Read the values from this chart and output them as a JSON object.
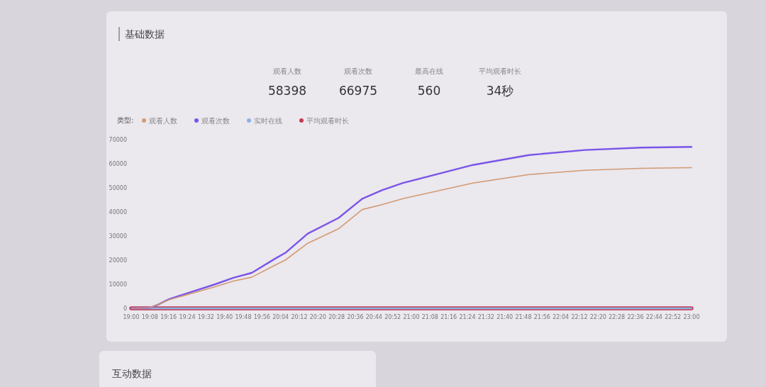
{
  "chart_data": [
    {
      "type": "other",
      "title": "基础数据",
      "annotations": [
        "观看人数",
        "58398",
        "观看次数",
        "66975",
        "最高在线",
        "560",
        "平均观看时长",
        "34秒"
      ]
    },
    {
      "type": "line",
      "legend_title": "类型:",
      "legend": "top left",
      "grid": false,
      "marker": "none",
      "line_style": "solid",
      "xlim": [
        19,
        23
      ],
      "ylim": [
        0,
        70000
      ],
      "yticks": [
        0,
        10000,
        20000,
        30000,
        40000,
        50000,
        60000,
        70000
      ],
      "xticks": [
        {
          "value": 19,
          "label": "19:00"
        },
        {
          "value": 19.1333,
          "label": "19:08"
        },
        {
          "value": 19.2667,
          "label": "19:16"
        },
        {
          "value": 19.4,
          "label": "19:24"
        },
        {
          "value": 19.5333,
          "label": "19:32"
        },
        {
          "value": 19.6667,
          "label": "19:40"
        },
        {
          "value": 19.8,
          "label": "19:48"
        },
        {
          "value": 19.9333,
          "label": "19:56"
        },
        {
          "value": 20.0667,
          "label": "20:04"
        },
        {
          "value": 20.2,
          "label": "20:12"
        },
        {
          "value": 20.3333,
          "label": "20:20"
        },
        {
          "value": 20.4667,
          "label": "20:28"
        },
        {
          "value": 20.6,
          "label": "20:36"
        },
        {
          "value": 20.7333,
          "label": "20:44"
        },
        {
          "value": 20.8667,
          "label": "20:52"
        },
        {
          "value": 21,
          "label": "21:00"
        },
        {
          "value": 21.1333,
          "label": "21:08"
        },
        {
          "value": 21.2667,
          "label": "21:16"
        },
        {
          "value": 21.4,
          "label": "21:24"
        },
        {
          "value": 21.5333,
          "label": "21:32"
        },
        {
          "value": 21.6667,
          "label": "21:40"
        },
        {
          "value": 21.8,
          "label": "21:48"
        },
        {
          "value": 21.9333,
          "label": "21:56"
        },
        {
          "value": 22.0667,
          "label": "22:04"
        },
        {
          "value": 22.2,
          "label": "22:12"
        },
        {
          "value": 22.3333,
          "label": "22:20"
        },
        {
          "value": 22.4667,
          "label": "22:28"
        },
        {
          "value": 22.6,
          "label": "22:36"
        },
        {
          "value": 22.7333,
          "label": "22:44"
        },
        {
          "value": 22.8667,
          "label": "22:52"
        },
        {
          "value": 23,
          "label": "23:00"
        }
      ],
      "series": [
        {
          "name": "观看人数",
          "color": "#d39a72",
          "x": [
            19,
            19.13,
            19.27,
            19.6,
            19.73,
            19.86,
            20.03,
            20.1,
            20.26,
            20.48,
            20.65,
            20.79,
            20.94,
            21.44,
            21.84,
            22.24,
            22.64,
            23
          ],
          "values": [
            0,
            200,
            3500,
            9000,
            11300,
            12900,
            18000,
            20000,
            27000,
            33000,
            41000,
            43000,
            45500,
            52000,
            55500,
            57300,
            58100,
            58400
          ]
        },
        {
          "name": "观看次数",
          "color": "#7a55e8",
          "x": [
            19,
            19.13,
            19.19,
            19.27,
            19.6,
            19.73,
            19.86,
            20.03,
            20.1,
            20.26,
            20.48,
            20.65,
            20.79,
            20.94,
            21.44,
            21.84,
            22.24,
            22.64,
            23
          ],
          "values": [
            0,
            200,
            1500,
            3800,
            10000,
            12700,
            14700,
            20700,
            23000,
            31000,
            37500,
            45500,
            49000,
            52000,
            59500,
            63600,
            65700,
            66700,
            67000
          ]
        },
        {
          "name": "实时在线",
          "color": "#8db3e2",
          "x": [
            19,
            19.13,
            19.27,
            19.6,
            20.1,
            20.65,
            21.44,
            22.24,
            23
          ],
          "values": [
            0,
            0,
            0,
            0,
            0,
            0,
            0,
            0,
            0
          ]
        },
        {
          "name": "平均观看时长",
          "color": "#c23a52",
          "x": [
            19,
            19.13,
            19.27,
            20.1,
            21.44,
            23
          ],
          "values": [
            0,
            0,
            0,
            0,
            0,
            0
          ]
        }
      ],
      "annotations": [
        "互动数据"
      ]
    }
  ]
}
